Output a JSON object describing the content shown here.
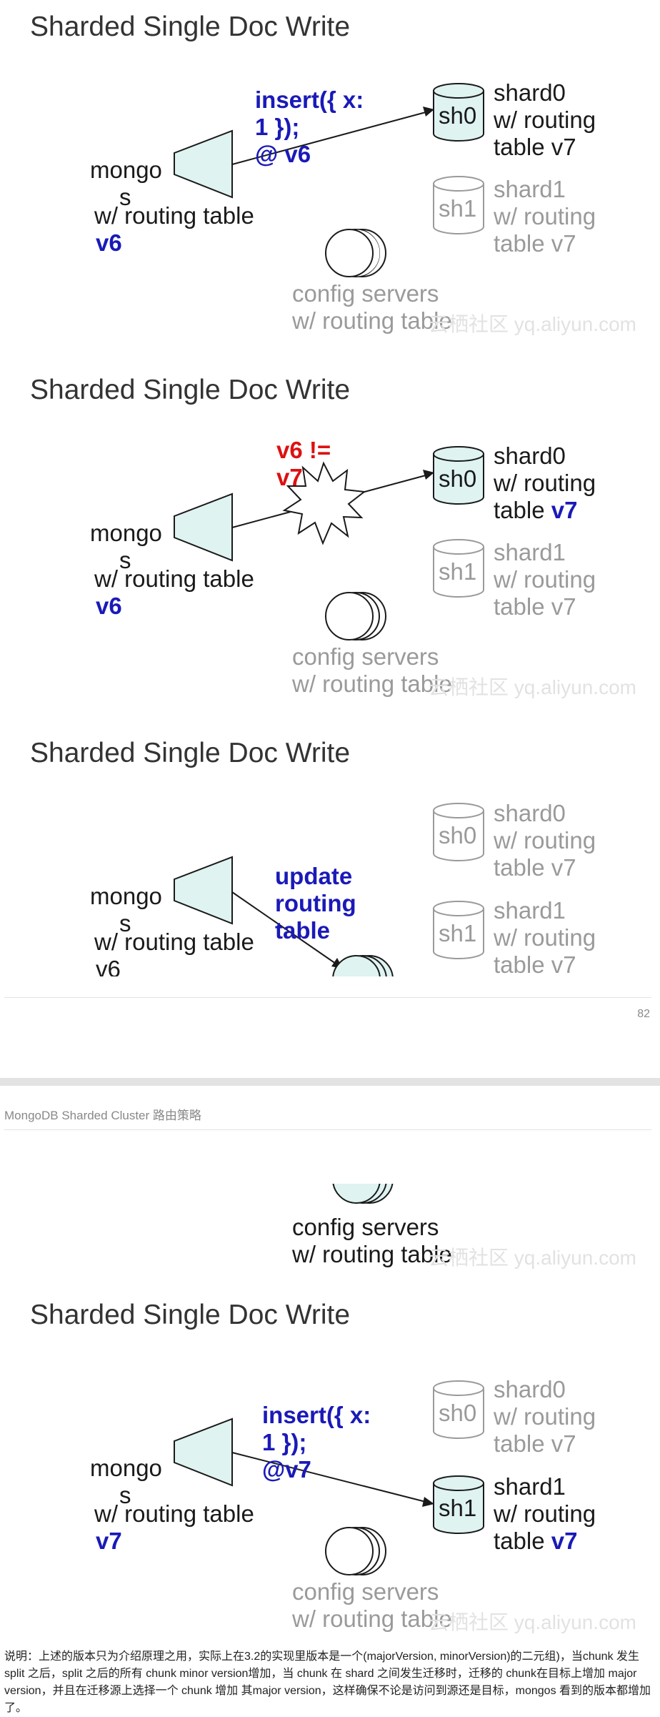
{
  "slide_title": "Sharded Single Doc Write",
  "diagram": {
    "mongos_line1": "mongo",
    "mongos_line2": "s",
    "mongos_line3": "w/ routing table",
    "shard_line2": "w/ routing",
    "sh0_label": "sh0",
    "sh1_label": "sh1",
    "shard0_name": "shard0",
    "shard1_name": "shard1",
    "table_prefix": "table",
    "config_line1": "config servers",
    "config_line2": "w/ routing table"
  },
  "slide1": {
    "mongos_version": "v6",
    "shard0_version": "v7",
    "shard1_version": "v7",
    "op_line1": "insert({ x:",
    "op_line2": "1 });",
    "op_line3": "@ v6"
  },
  "slide2": {
    "mongos_version": "v6",
    "shard0_version": "v7",
    "shard1_version": "v7",
    "err_line1": "v6 !=",
    "err_line2": "v7"
  },
  "slide3": {
    "mongos_version": "v6",
    "shard0_version": "table v7",
    "shard1_version": "table v7",
    "op_line1": "update",
    "op_line2": "routing",
    "op_line3": "table"
  },
  "slide5": {
    "mongos_version": "v7",
    "shard0_version": "v7",
    "shard1_version": "v7",
    "op_line1": "insert({ x:",
    "op_line2": "1 });",
    "op_line3": "@v7"
  },
  "watermark": "云栖社区 yq.aliyun.com",
  "page_number": "82",
  "doc_header": "MongoDB Sharded Cluster 路由策略",
  "footer_note": "说明：上述的版本只为介绍原理之用，实际上在3.2的实现里版本是一个(majorVersion, minorVersion)的二元组)，当chunk 发生 split 之后，split 之后的所有 chunk minor version增加，当 chunk 在 shard 之间发生迁移时，迁移的 chunk在目标上增加 major version，并且在迁移源上选择一个 chunk 增加 其major version，这样确保不论是访问到源还是目标，mongos 看到的版本都增加了。"
}
